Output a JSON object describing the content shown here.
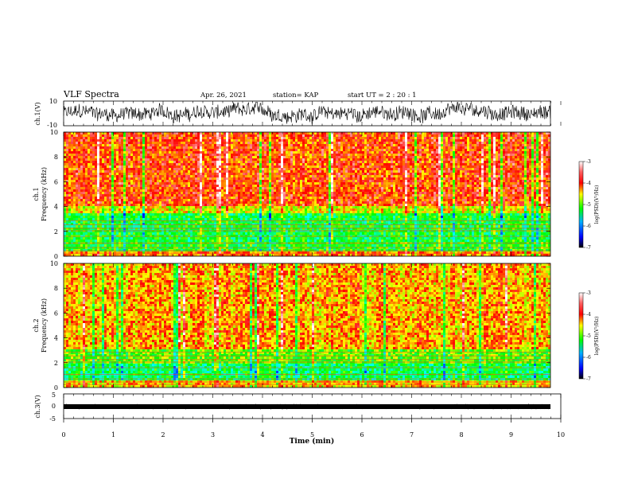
{
  "header": {
    "title": "VLF Spectra",
    "date": "Apr. 26, 2021",
    "station": "station= KAP",
    "start": "start  UT =  2 : 20 : 1"
  },
  "chart_data": [
    {
      "type": "line",
      "name": "ch1-waveform",
      "ylabel": "ch.1(V)",
      "ylim": [
        -10,
        10
      ],
      "yticks": [
        "10",
        "-10"
      ],
      "xlim": [
        0,
        10
      ],
      "notes": "noisy black waveform, amplitude roughly +/-8 V"
    },
    {
      "type": "heatmap",
      "name": "ch1-spectrogram",
      "ylabel": "ch.1\nFrequency  (kHz)",
      "ylim": [
        0,
        10
      ],
      "yticks": [
        0,
        2,
        4,
        6,
        8,
        10
      ],
      "xlim": [
        0,
        9.85
      ],
      "bands": [
        {
          "from": 0,
          "to": 0.4,
          "level": -4.0
        },
        {
          "from": 0.4,
          "to": 1.2,
          "level": -5.0
        },
        {
          "from": 1.2,
          "to": 3.4,
          "level": -5.1
        },
        {
          "from": 3.4,
          "to": 4.0,
          "level": -4.4
        },
        {
          "from": 4.0,
          "to": 10,
          "level": -3.8
        }
      ],
      "colorbar": {
        "label": "log(PSD)(V²/Hz)",
        "range": [
          -7,
          -3
        ],
        "ticks": [
          "-3",
          "-4",
          "-5",
          "-6",
          "-7"
        ]
      }
    },
    {
      "type": "heatmap",
      "name": "ch2-spectrogram",
      "ylabel": "ch.2\nFrequency  (kHz)",
      "ylim": [
        0,
        10
      ],
      "yticks": [
        0,
        2,
        4,
        6,
        8,
        10
      ],
      "xlim": [
        0,
        9.85
      ],
      "bands": [
        {
          "from": 0,
          "to": 0.5,
          "level": -4.2
        },
        {
          "from": 0.5,
          "to": 2.0,
          "level": -5.2
        },
        {
          "from": 2.0,
          "to": 3.0,
          "level": -4.8
        },
        {
          "from": 3.0,
          "to": 10,
          "level": -4.1
        }
      ],
      "colorbar": {
        "label": "log(PSD)(V²/Hz)",
        "range": [
          -7,
          -3
        ],
        "ticks": [
          "-3",
          "-4",
          "-5",
          "-6",
          "-7"
        ]
      }
    },
    {
      "type": "line",
      "name": "ch3-waveform",
      "ylabel": "ch.3(V)",
      "ylim": [
        -5,
        5
      ],
      "yticks": [
        "5",
        "0",
        "-5"
      ],
      "xlim": [
        0,
        10
      ],
      "xlabel": "Time  (min)",
      "xticks": [
        "0",
        "1",
        "2",
        "3",
        "4",
        "5",
        "6",
        "7",
        "8",
        "9",
        "10"
      ],
      "notes": "thick band of dense signal near +0.3 V"
    }
  ],
  "colors": {
    "colormap": [
      "#000000",
      "#0000ff",
      "#00ffff",
      "#00ff00",
      "#ffff00",
      "#ff0000",
      "#ffffff"
    ],
    "axis": "#000000",
    "waveform": "#000000"
  }
}
